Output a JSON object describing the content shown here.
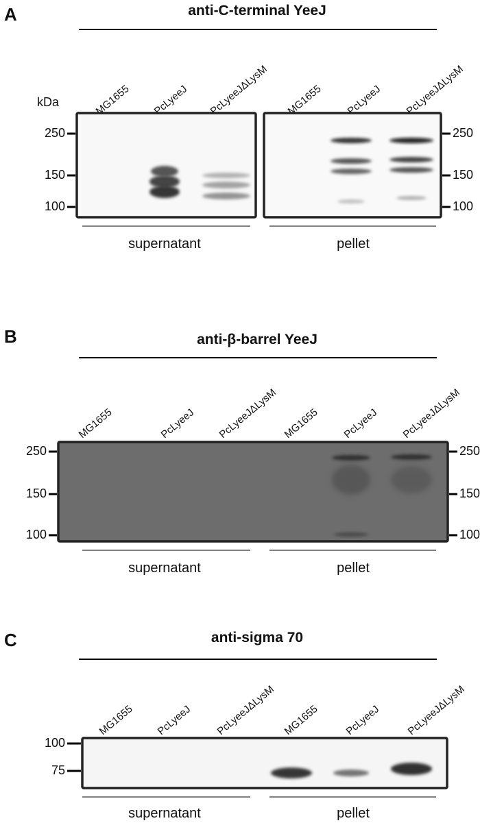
{
  "panels": [
    {
      "letter": "A",
      "title": "anti-C-terminal YeeJ",
      "kda_label": "kDa",
      "lanes": [
        "MG1655",
        "PcLyeeJ",
        "PcLyeeJΔLysM",
        "MG1655",
        "PcLyeeJ",
        "PcLyeeJΔLysM"
      ],
      "markers_left": [
        250,
        150,
        100
      ],
      "markers_right": [
        250,
        150,
        100
      ],
      "groups": [
        "supernatant",
        "pellet"
      ]
    },
    {
      "letter": "B",
      "title": "anti-β-barrel YeeJ",
      "lanes": [
        "MG1655",
        "PcLyeeJ",
        "PcLyeeJΔLysM",
        "MG1655",
        "PcLyeeJ",
        "PcLyeeJΔLysM"
      ],
      "markers_left": [
        250,
        150,
        100
      ],
      "markers_right": [
        250,
        150,
        100
      ],
      "groups": [
        "supernatant",
        "pellet"
      ]
    },
    {
      "letter": "C",
      "title": "anti-sigma 70",
      "lanes": [
        "MG1655",
        "PcLyeeJ",
        "PcLyeeJΔLysM",
        "MG1655",
        "PcLyeeJ",
        "PcLyeeJΔLysM"
      ],
      "markers_left": [
        100,
        75
      ],
      "groups": [
        "supernatant",
        "pellet"
      ]
    }
  ]
}
